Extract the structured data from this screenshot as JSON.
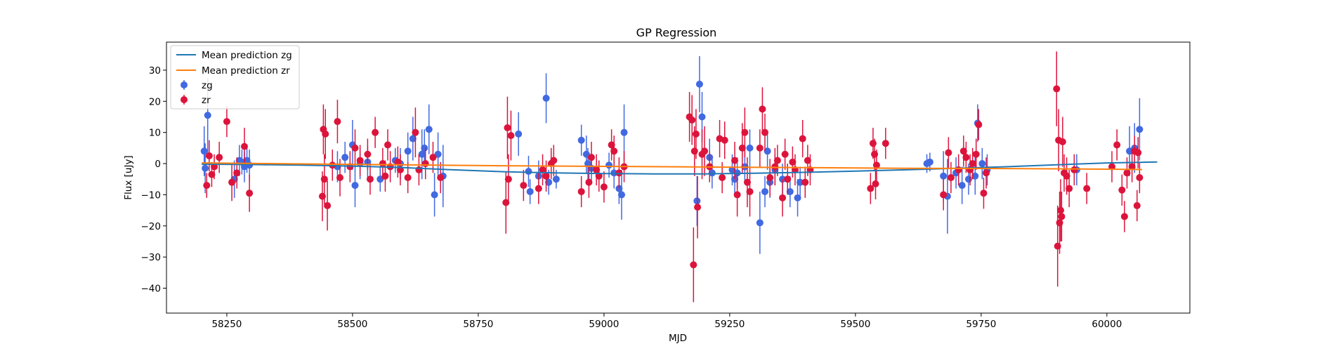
{
  "chart_data": {
    "type": "scatter",
    "title": "GP Regression",
    "xlabel": "MJD",
    "ylabel": "Flux [uJy]",
    "xlim": [
      58130,
      60165
    ],
    "ylim": [
      -48,
      39
    ],
    "xticks": [
      58250,
      58500,
      58750,
      59000,
      59250,
      59500,
      59750,
      60000
    ],
    "yticks": [
      -40,
      -30,
      -20,
      -10,
      0,
      10,
      20,
      30
    ],
    "legend_position": "top-left",
    "colors": {
      "zg_line": "#1f77b4",
      "zr_line": "#ff7f0e",
      "zg_points": "#4169e1",
      "zr_points": "#dc143c"
    },
    "series": [
      {
        "name": "Mean prediction zg",
        "kind": "line",
        "color": "#1f77b4",
        "x": [
          58200,
          58300,
          58400,
          58500,
          58600,
          58700,
          58800,
          58900,
          59000,
          59100,
          59200,
          59300,
          59400,
          59500,
          59600,
          59700,
          59800,
          59900,
          60000,
          60100
        ],
        "y": [
          -0.2,
          -0.3,
          -0.5,
          -0.8,
          -1.3,
          -2.0,
          -2.6,
          -3.0,
          -3.2,
          -3.3,
          -3.3,
          -3.1,
          -2.8,
          -2.4,
          -2.0,
          -1.5,
          -1.0,
          -0.4,
          0.2,
          0.5
        ]
      },
      {
        "name": "Mean prediction zr",
        "kind": "line",
        "color": "#ff7f0e",
        "x": [
          58200,
          58400,
          58600,
          58800,
          59000,
          59200,
          59400,
          59600,
          59800,
          60000,
          60070
        ],
        "y": [
          0.2,
          -0.1,
          -0.4,
          -0.7,
          -0.9,
          -1.1,
          -1.3,
          -1.5,
          -1.6,
          -1.8,
          -1.9
        ]
      },
      {
        "name": "zg",
        "kind": "errorbar",
        "color": "#4169e1",
        "points": [
          [
            58205,
            4,
            8
          ],
          [
            58207,
            -1.5,
            8
          ],
          [
            58212,
            15.5,
            12
          ],
          [
            58265,
            -5,
            6
          ],
          [
            58275,
            1,
            5
          ],
          [
            58280,
            0.5,
            4
          ],
          [
            58285,
            -1,
            5
          ],
          [
            58290,
            1,
            4
          ],
          [
            58295,
            -0.5,
            5
          ],
          [
            58470,
            -1,
            5
          ],
          [
            58485,
            2,
            5
          ],
          [
            58500,
            6,
            8
          ],
          [
            58505,
            -7,
            7
          ],
          [
            58515,
            0,
            5
          ],
          [
            58530,
            0.5,
            5
          ],
          [
            58555,
            -5,
            4
          ],
          [
            58585,
            1,
            4
          ],
          [
            58595,
            0,
            5
          ],
          [
            58610,
            4,
            6
          ],
          [
            58620,
            8,
            7
          ],
          [
            58638,
            3,
            8
          ],
          [
            58643,
            5,
            6
          ],
          [
            58652,
            11,
            8
          ],
          [
            58663,
            -10,
            7
          ],
          [
            58670,
            3,
            7
          ],
          [
            58680,
            -4,
            10
          ],
          [
            58830,
            9.5,
            7
          ],
          [
            58850,
            -2.5,
            5
          ],
          [
            58853,
            -9,
            4
          ],
          [
            58870,
            -4,
            5
          ],
          [
            58885,
            21,
            8
          ],
          [
            58890,
            -6,
            4
          ],
          [
            58905,
            -5,
            3
          ],
          [
            58955,
            7.5,
            5
          ],
          [
            58965,
            3,
            6
          ],
          [
            58968,
            0,
            5
          ],
          [
            58975,
            -1.5,
            4
          ],
          [
            58990,
            -4,
            5
          ],
          [
            59010,
            -0.5,
            4
          ],
          [
            59020,
            -3,
            5
          ],
          [
            59030,
            -8,
            5
          ],
          [
            59035,
            -10,
            8
          ],
          [
            59040,
            10,
            9
          ],
          [
            59185,
            -12,
            8
          ],
          [
            59190,
            25.5,
            9
          ],
          [
            59195,
            15,
            8
          ],
          [
            59210,
            2,
            6
          ],
          [
            59215,
            -3,
            5
          ],
          [
            59255,
            -2,
            5
          ],
          [
            59260,
            -5,
            5
          ],
          [
            59265,
            -3,
            5
          ],
          [
            59280,
            -1,
            5
          ],
          [
            59290,
            5,
            6
          ],
          [
            59310,
            -19,
            10
          ],
          [
            59320,
            -9,
            5
          ],
          [
            59325,
            4,
            6
          ],
          [
            59330,
            -6,
            5
          ],
          [
            59340,
            -2,
            5
          ],
          [
            59355,
            -5,
            5
          ],
          [
            59370,
            -9,
            5
          ],
          [
            59385,
            -11,
            6
          ],
          [
            59390,
            -6,
            5
          ],
          [
            59642,
            0,
            3
          ],
          [
            59648,
            0.5,
            3
          ],
          [
            59675,
            -4,
            8
          ],
          [
            59683,
            -10.5,
            12
          ],
          [
            59700,
            -3,
            5
          ],
          [
            59712,
            -7,
            6
          ],
          [
            59725,
            -5,
            5
          ],
          [
            59738,
            -4,
            6
          ],
          [
            59743,
            13,
            6
          ],
          [
            59752,
            0,
            5
          ],
          [
            59762,
            -2,
            5
          ],
          [
            59940,
            -2,
            5
          ],
          [
            60045,
            4,
            8
          ],
          [
            60055,
            5,
            8
          ],
          [
            60065,
            11,
            10
          ]
        ]
      },
      {
        "name": "zr",
        "kind": "errorbar",
        "color": "#dc143c",
        "points": [
          [
            58210,
            -7,
            4
          ],
          [
            58215,
            2.5,
            5
          ],
          [
            58220,
            -3.5,
            4
          ],
          [
            58225,
            -1,
            4
          ],
          [
            58235,
            2,
            5
          ],
          [
            58250,
            13.5,
            5
          ],
          [
            58260,
            -6,
            6
          ],
          [
            58270,
            -3,
            5
          ],
          [
            58285,
            5.5,
            6
          ],
          [
            58295,
            -9.5,
            6
          ],
          [
            58440,
            -10.5,
            8
          ],
          [
            58442,
            11,
            8
          ],
          [
            58444,
            -5,
            8
          ],
          [
            58446,
            9.5,
            8
          ],
          [
            58450,
            -13.5,
            8
          ],
          [
            58460,
            -0.5,
            5
          ],
          [
            58470,
            13.5,
            7
          ],
          [
            58475,
            -4.5,
            6
          ],
          [
            58495,
            -1,
            5
          ],
          [
            58505,
            5,
            6
          ],
          [
            58515,
            1,
            5
          ],
          [
            58530,
            3,
            5
          ],
          [
            58535,
            -5,
            5
          ],
          [
            58545,
            10,
            5
          ],
          [
            58560,
            0,
            5
          ],
          [
            58565,
            -4,
            5
          ],
          [
            58570,
            6,
            5
          ],
          [
            58575,
            -1,
            5
          ],
          [
            58590,
            0.5,
            5
          ],
          [
            58595,
            -2,
            5
          ],
          [
            58610,
            -4.5,
            5
          ],
          [
            58625,
            10,
            8
          ],
          [
            58632,
            -2,
            5
          ],
          [
            58645,
            0,
            5
          ],
          [
            58660,
            2,
            5
          ],
          [
            58675,
            -4.5,
            5
          ],
          [
            58805,
            -12.5,
            10
          ],
          [
            58808,
            11.5,
            10
          ],
          [
            58810,
            -5,
            8
          ],
          [
            58815,
            9,
            8
          ],
          [
            58840,
            -7,
            5
          ],
          [
            58870,
            -8,
            5
          ],
          [
            58878,
            -2,
            5
          ],
          [
            58885,
            -4,
            5
          ],
          [
            58895,
            0,
            5
          ],
          [
            58900,
            1,
            5
          ],
          [
            58955,
            -9,
            5
          ],
          [
            58970,
            -6,
            5
          ],
          [
            58975,
            2,
            5
          ],
          [
            58985,
            -2,
            5
          ],
          [
            58990,
            -4,
            5
          ],
          [
            59000,
            -7.5,
            5
          ],
          [
            59015,
            6,
            5
          ],
          [
            59020,
            4,
            5
          ],
          [
            59030,
            -3,
            5
          ],
          [
            59040,
            -1,
            5
          ],
          [
            59170,
            15,
            8
          ],
          [
            59175,
            14,
            8
          ],
          [
            59178,
            -32.5,
            12
          ],
          [
            59180,
            4,
            8
          ],
          [
            59183,
            9.5,
            8
          ],
          [
            59186,
            -14,
            10
          ],
          [
            59195,
            3,
            8
          ],
          [
            59200,
            4,
            8
          ],
          [
            59210,
            -1,
            5
          ],
          [
            59230,
            8,
            6
          ],
          [
            59235,
            -4.5,
            5
          ],
          [
            59240,
            7.5,
            6
          ],
          [
            59260,
            1,
            6
          ],
          [
            59265,
            -10,
            7
          ],
          [
            59275,
            5,
            8
          ],
          [
            59280,
            10,
            8
          ],
          [
            59285,
            -6,
            8
          ],
          [
            59290,
            -9,
            8
          ],
          [
            59310,
            5,
            6
          ],
          [
            59315,
            17.5,
            7
          ],
          [
            59320,
            10,
            6
          ],
          [
            59330,
            -4.5,
            6
          ],
          [
            59340,
            -1,
            6
          ],
          [
            59345,
            1,
            5
          ],
          [
            59355,
            -11,
            6
          ],
          [
            59360,
            3,
            5
          ],
          [
            59365,
            -5,
            5
          ],
          [
            59375,
            0.5,
            5
          ],
          [
            59380,
            -2,
            5
          ],
          [
            59395,
            8,
            6
          ],
          [
            59400,
            -6,
            5
          ],
          [
            59405,
            1,
            5
          ],
          [
            59410,
            -2,
            5
          ],
          [
            59530,
            -8,
            5
          ],
          [
            59535,
            6.5,
            5
          ],
          [
            59538,
            3,
            5
          ],
          [
            59540,
            -6.5,
            5
          ],
          [
            59542,
            -0.5,
            5
          ],
          [
            59560,
            6.5,
            5
          ],
          [
            59675,
            -10,
            5
          ],
          [
            59685,
            3.5,
            5
          ],
          [
            59690,
            -4.5,
            5
          ],
          [
            59705,
            -2,
            5
          ],
          [
            59715,
            4,
            5
          ],
          [
            59720,
            2,
            5
          ],
          [
            59728,
            -2,
            5
          ],
          [
            59733,
            0,
            5
          ],
          [
            59740,
            3,
            5
          ],
          [
            59745,
            12.5,
            5
          ],
          [
            59755,
            -9.5,
            5
          ],
          [
            59760,
            -3,
            5
          ],
          [
            59900,
            24,
            12
          ],
          [
            59902,
            -26.5,
            13
          ],
          [
            59904,
            7.5,
            10
          ],
          [
            59906,
            -19,
            10
          ],
          [
            59908,
            -15,
            10
          ],
          [
            59910,
            -17,
            8
          ],
          [
            59912,
            7,
            8
          ],
          [
            59915,
            -3,
            6
          ],
          [
            59920,
            -4,
            6
          ],
          [
            59925,
            -8,
            6
          ],
          [
            59935,
            -2,
            5
          ],
          [
            59960,
            -8,
            5
          ],
          [
            60010,
            -1,
            5
          ],
          [
            60020,
            6,
            5
          ],
          [
            60030,
            -8.5,
            5
          ],
          [
            60035,
            -17,
            5
          ],
          [
            60040,
            -3,
            5
          ],
          [
            60050,
            -1,
            5
          ],
          [
            60055,
            4,
            5
          ],
          [
            60060,
            -13.5,
            5
          ],
          [
            60062,
            3.5,
            5
          ],
          [
            60065,
            -4.5,
            5
          ]
        ]
      }
    ]
  }
}
